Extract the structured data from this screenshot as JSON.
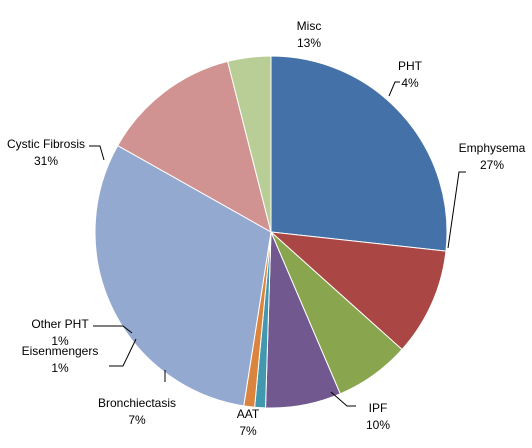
{
  "chart_data": {
    "type": "pie",
    "title": "",
    "start": "top",
    "direction": "clockwise",
    "slices": [
      {
        "label": "Emphysema",
        "value": 27,
        "percent_label": "27%",
        "color": "#4472a8"
      },
      {
        "label": "IPF",
        "value": 10,
        "percent_label": "10%",
        "color": "#aa4643"
      },
      {
        "label": "AAT",
        "value": 7,
        "percent_label": "7%",
        "color": "#89a54e"
      },
      {
        "label": "Bronchiectasis",
        "value": 7,
        "percent_label": "7%",
        "color": "#71588f"
      },
      {
        "label": "Eisenmengers",
        "value": 1,
        "percent_label": "1%",
        "color": "#4198af"
      },
      {
        "label": "Other PHT",
        "value": 1,
        "percent_label": "1%",
        "color": "#db843d"
      },
      {
        "label": "Cystic Fibrosis",
        "value": 31,
        "percent_label": "31%",
        "color": "#93a9cf"
      },
      {
        "label": "Misc",
        "value": 13,
        "percent_label": "13%",
        "color": "#d19392"
      },
      {
        "label": "PHT",
        "value": 4,
        "percent_label": "4%",
        "color": "#b9cd96"
      }
    ]
  }
}
